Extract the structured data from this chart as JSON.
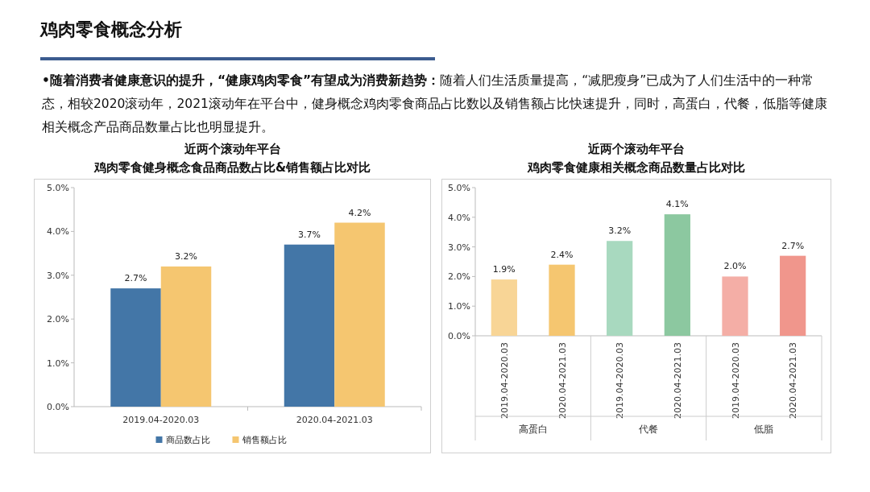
{
  "chart_data": [
    {
      "type": "other",
      "title": "鸡肉零食概念分析",
      "annotations": [
        "•随着消费者健康意识的提升，“健康鸡肉零食”有望成为消费新趋势：",
        "随着人们生活质量提高，“减肥瘦身”已成为了人们生活中的一种常态，相较2020滚动年，2021滚动年在平台中，健身概念鸡肉零食商品占比数以及销售额占比快速提升，同时，高蛋白，代餐，低脂等健康相关概念产品商品数量占比也明显提升。"
      ]
    },
    {
      "type": "bar",
      "title": "近两个滚动年平台",
      "subtitle": "鸡肉零食健身概念食品商品数占比&销售额占比对比",
      "categories": [
        "2019.04-2020.03",
        "2020.04-2021.03"
      ],
      "series": [
        {
          "name": "商品数占比",
          "color": "#4376a7",
          "values": [
            2.7,
            3.7
          ],
          "value_labels": [
            "2.7%",
            "3.7%"
          ]
        },
        {
          "name": "销售额占比",
          "color": "#f5c670",
          "values": [
            3.2,
            4.2
          ],
          "value_labels": [
            "3.2%",
            "4.2%"
          ]
        }
      ],
      "ylim": [
        0,
        5
      ],
      "yticks": [
        {
          "value": 0,
          "label": "0.0%"
        },
        {
          "value": 1,
          "label": "1.0%"
        },
        {
          "value": 2,
          "label": "2.0%"
        },
        {
          "value": 3,
          "label": "3.0%"
        },
        {
          "value": 4,
          "label": "4.0%"
        },
        {
          "value": 5,
          "label": "5.0%"
        }
      ],
      "legend": "bottom"
    },
    {
      "type": "bar",
      "title": "近两个滚动年平台",
      "subtitle": "鸡肉零食健康相关概念商品数量占比对比",
      "categories": [
        "2019.04-2020.03",
        "2020.04-2021.03",
        "2019.04-2020.03",
        "2020.04-2021.03",
        "2019.04-2020.03",
        "2020.04-2021.03"
      ],
      "values": [
        1.9,
        2.4,
        3.2,
        4.1,
        2.0,
        2.7
      ],
      "value_labels": [
        "1.9%",
        "2.4%",
        "3.2%",
        "4.1%",
        "2.0%",
        "2.7%"
      ],
      "colors": [
        "#f8d596",
        "#f5c670",
        "#a8d9bf",
        "#8cc8a0",
        "#f4aea6",
        "#f0968c"
      ],
      "annotations": [
        "高蛋白",
        "代餐",
        "低脂"
      ],
      "ylim": [
        0,
        5
      ],
      "yticks": [
        {
          "value": 0,
          "label": "0.0%"
        },
        {
          "value": 1,
          "label": "1.0%"
        },
        {
          "value": 2,
          "label": "2.0%"
        },
        {
          "value": 3,
          "label": "3.0%"
        },
        {
          "value": 4,
          "label": "4.0%"
        },
        {
          "value": 5,
          "label": "5.0%"
        }
      ]
    }
  ]
}
